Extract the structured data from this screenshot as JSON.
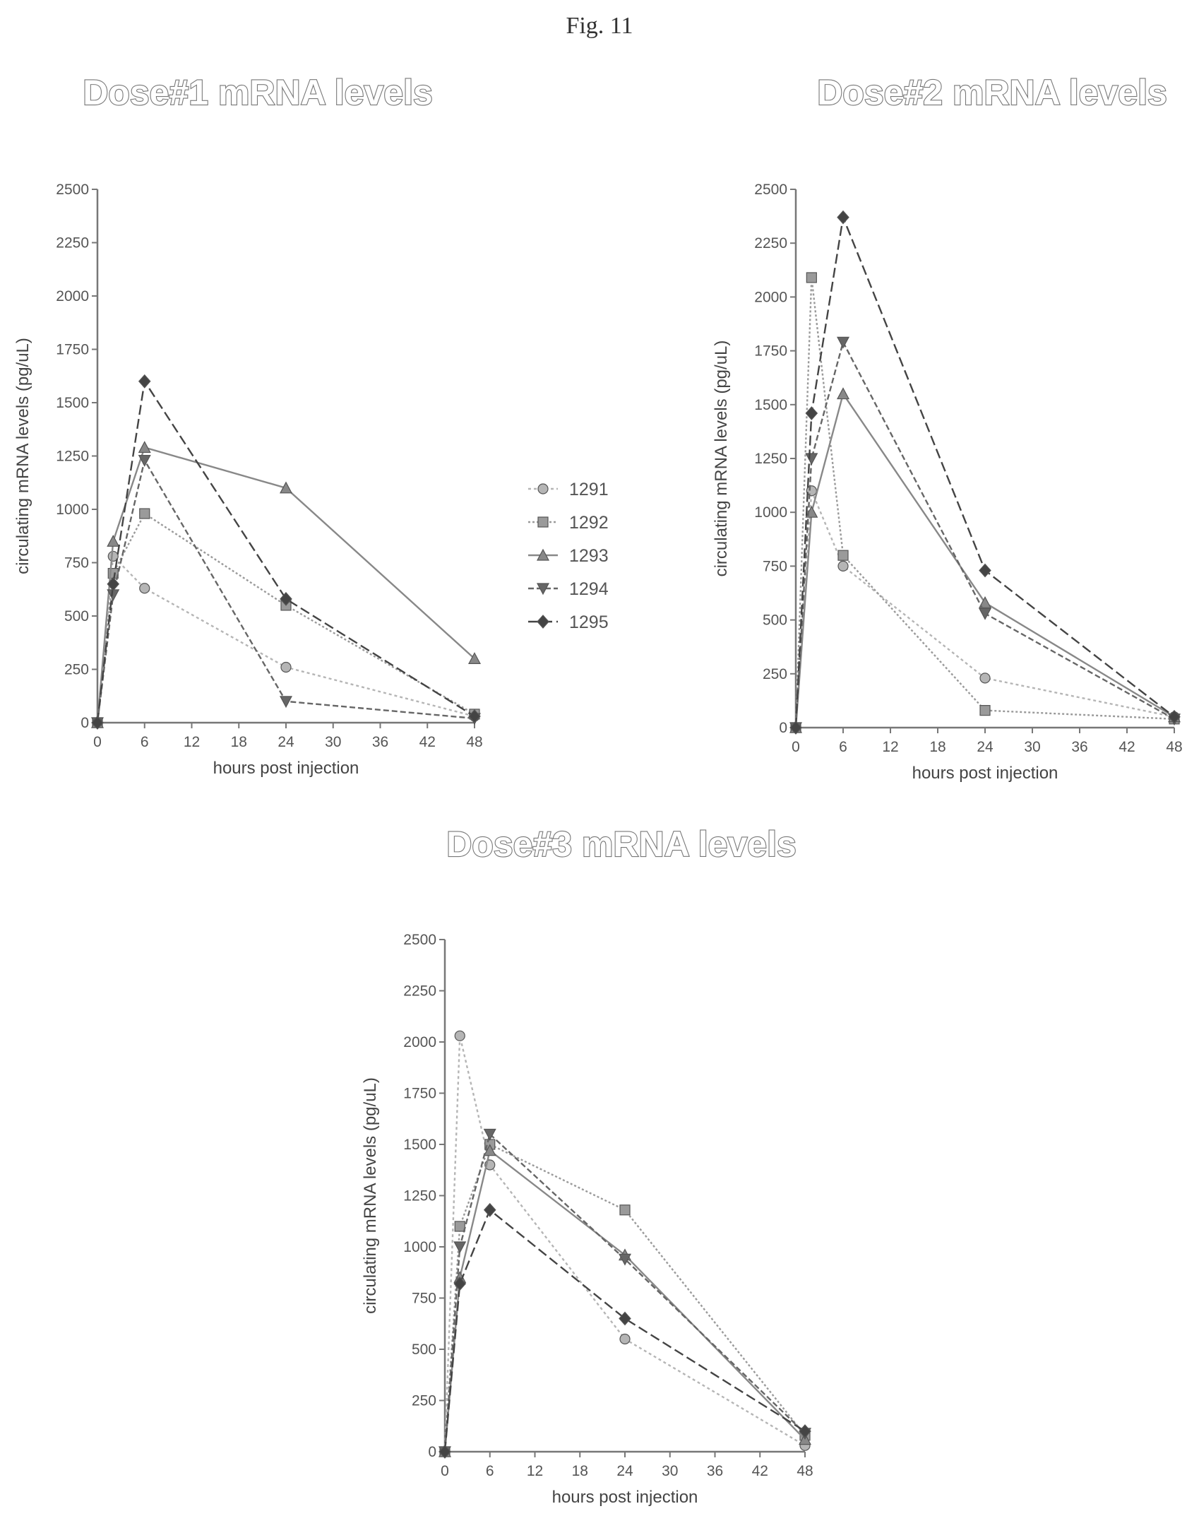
{
  "figure": {
    "label": "Fig. 11"
  },
  "legend": {
    "items": [
      {
        "name": "1291",
        "color": "#b5b5b5",
        "dash": "4,4",
        "marker": "circle"
      },
      {
        "name": "1292",
        "color": "#9a9a9a",
        "dash": "3,3",
        "marker": "square"
      },
      {
        "name": "1293",
        "color": "#888888",
        "dash": "",
        "marker": "triangle"
      },
      {
        "name": "1294",
        "color": "#666666",
        "dash": "8,4",
        "marker": "triangle-down"
      },
      {
        "name": "1295",
        "color": "#444444",
        "dash": "14,6",
        "marker": "diamond"
      }
    ]
  },
  "chart_data": [
    {
      "type": "line",
      "title": "Dose#1 mRNA levels",
      "xlabel": "hours post injection",
      "ylabel": "circulating mRNA levels (pg/uL)",
      "xlim": [
        0,
        48
      ],
      "ylim": [
        0,
        2500
      ],
      "xticks": [
        0,
        6,
        12,
        18,
        24,
        30,
        36,
        42,
        48
      ],
      "yticks": [
        0,
        250,
        500,
        750,
        1000,
        1250,
        1500,
        1750,
        2000,
        2250,
        2500
      ],
      "x": [
        0,
        2,
        6,
        24,
        48
      ],
      "series": [
        {
          "name": "1291",
          "values": [
            0,
            780,
            630,
            260,
            30
          ]
        },
        {
          "name": "1292",
          "values": [
            0,
            700,
            980,
            550,
            40
          ]
        },
        {
          "name": "1293",
          "values": [
            0,
            850,
            1290,
            1100,
            300
          ]
        },
        {
          "name": "1294",
          "values": [
            0,
            600,
            1230,
            100,
            20
          ]
        },
        {
          "name": "1295",
          "values": [
            0,
            650,
            1600,
            580,
            30
          ]
        }
      ]
    },
    {
      "type": "line",
      "title": "Dose#2 mRNA levels",
      "xlabel": "hours post injection",
      "ylabel": "circulating mRNA levels (pg/uL)",
      "xlim": [
        0,
        48
      ],
      "ylim": [
        0,
        2500
      ],
      "xticks": [
        0,
        6,
        12,
        18,
        24,
        30,
        36,
        42,
        48
      ],
      "yticks": [
        0,
        250,
        500,
        750,
        1000,
        1250,
        1500,
        1750,
        2000,
        2250,
        2500
      ],
      "x": [
        0,
        2,
        6,
        24,
        48
      ],
      "series": [
        {
          "name": "1291",
          "values": [
            0,
            1100,
            750,
            230,
            50
          ]
        },
        {
          "name": "1292",
          "values": [
            0,
            2090,
            800,
            80,
            40
          ]
        },
        {
          "name": "1293",
          "values": [
            0,
            1000,
            1550,
            580,
            50
          ]
        },
        {
          "name": "1294",
          "values": [
            0,
            1250,
            1790,
            530,
            40
          ]
        },
        {
          "name": "1295",
          "values": [
            0,
            1460,
            2370,
            730,
            50
          ]
        }
      ]
    },
    {
      "type": "line",
      "title": "Dose#3 mRNA levels",
      "xlabel": "hours post injection",
      "ylabel": "circulating mRNA levels (pg/uL)",
      "xlim": [
        0,
        48
      ],
      "ylim": [
        0,
        2500
      ],
      "xticks": [
        0,
        6,
        12,
        18,
        24,
        30,
        36,
        42,
        48
      ],
      "yticks": [
        0,
        250,
        500,
        750,
        1000,
        1250,
        1500,
        1750,
        2000,
        2250,
        2500
      ],
      "x": [
        0,
        2,
        6,
        24,
        48
      ],
      "series": [
        {
          "name": "1291",
          "values": [
            0,
            2030,
            1400,
            550,
            30
          ]
        },
        {
          "name": "1292",
          "values": [
            0,
            1100,
            1500,
            1180,
            80
          ]
        },
        {
          "name": "1293",
          "values": [
            0,
            850,
            1470,
            960,
            60
          ]
        },
        {
          "name": "1294",
          "values": [
            0,
            1000,
            1550,
            940,
            90
          ]
        },
        {
          "name": "1295",
          "values": [
            0,
            820,
            1180,
            650,
            100
          ]
        }
      ]
    }
  ]
}
